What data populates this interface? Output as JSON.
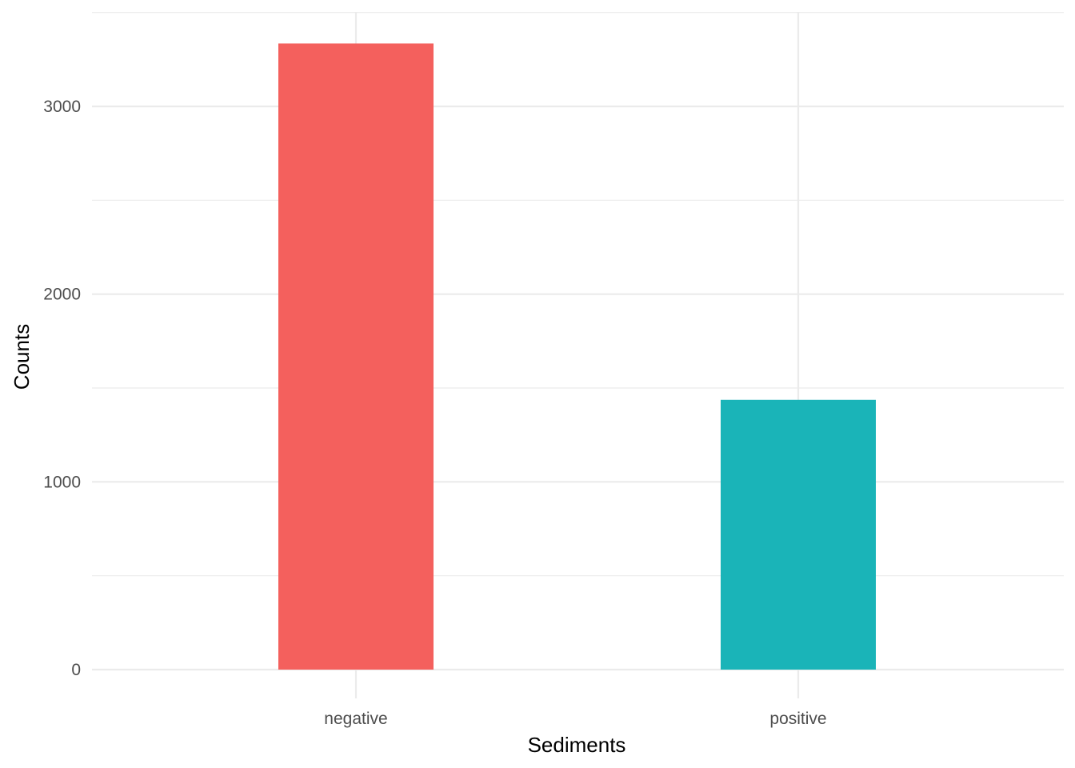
{
  "chart_data": {
    "type": "bar",
    "categories": [
      "negative",
      "positive"
    ],
    "values": [
      3335,
      1437
    ],
    "colors": [
      "#F4605D",
      "#1AB4B8"
    ],
    "title": "",
    "xlabel": "Sediments",
    "ylabel": "Counts",
    "ylim": [
      0,
      3500
    ],
    "yticks": [
      0,
      1000,
      2000,
      3000
    ],
    "ytick_labels": [
      "0",
      "1000",
      "2000",
      "3000"
    ],
    "y_minor_ticks": [
      500,
      1500,
      2500,
      3500
    ],
    "grid": true,
    "legend": "none"
  }
}
